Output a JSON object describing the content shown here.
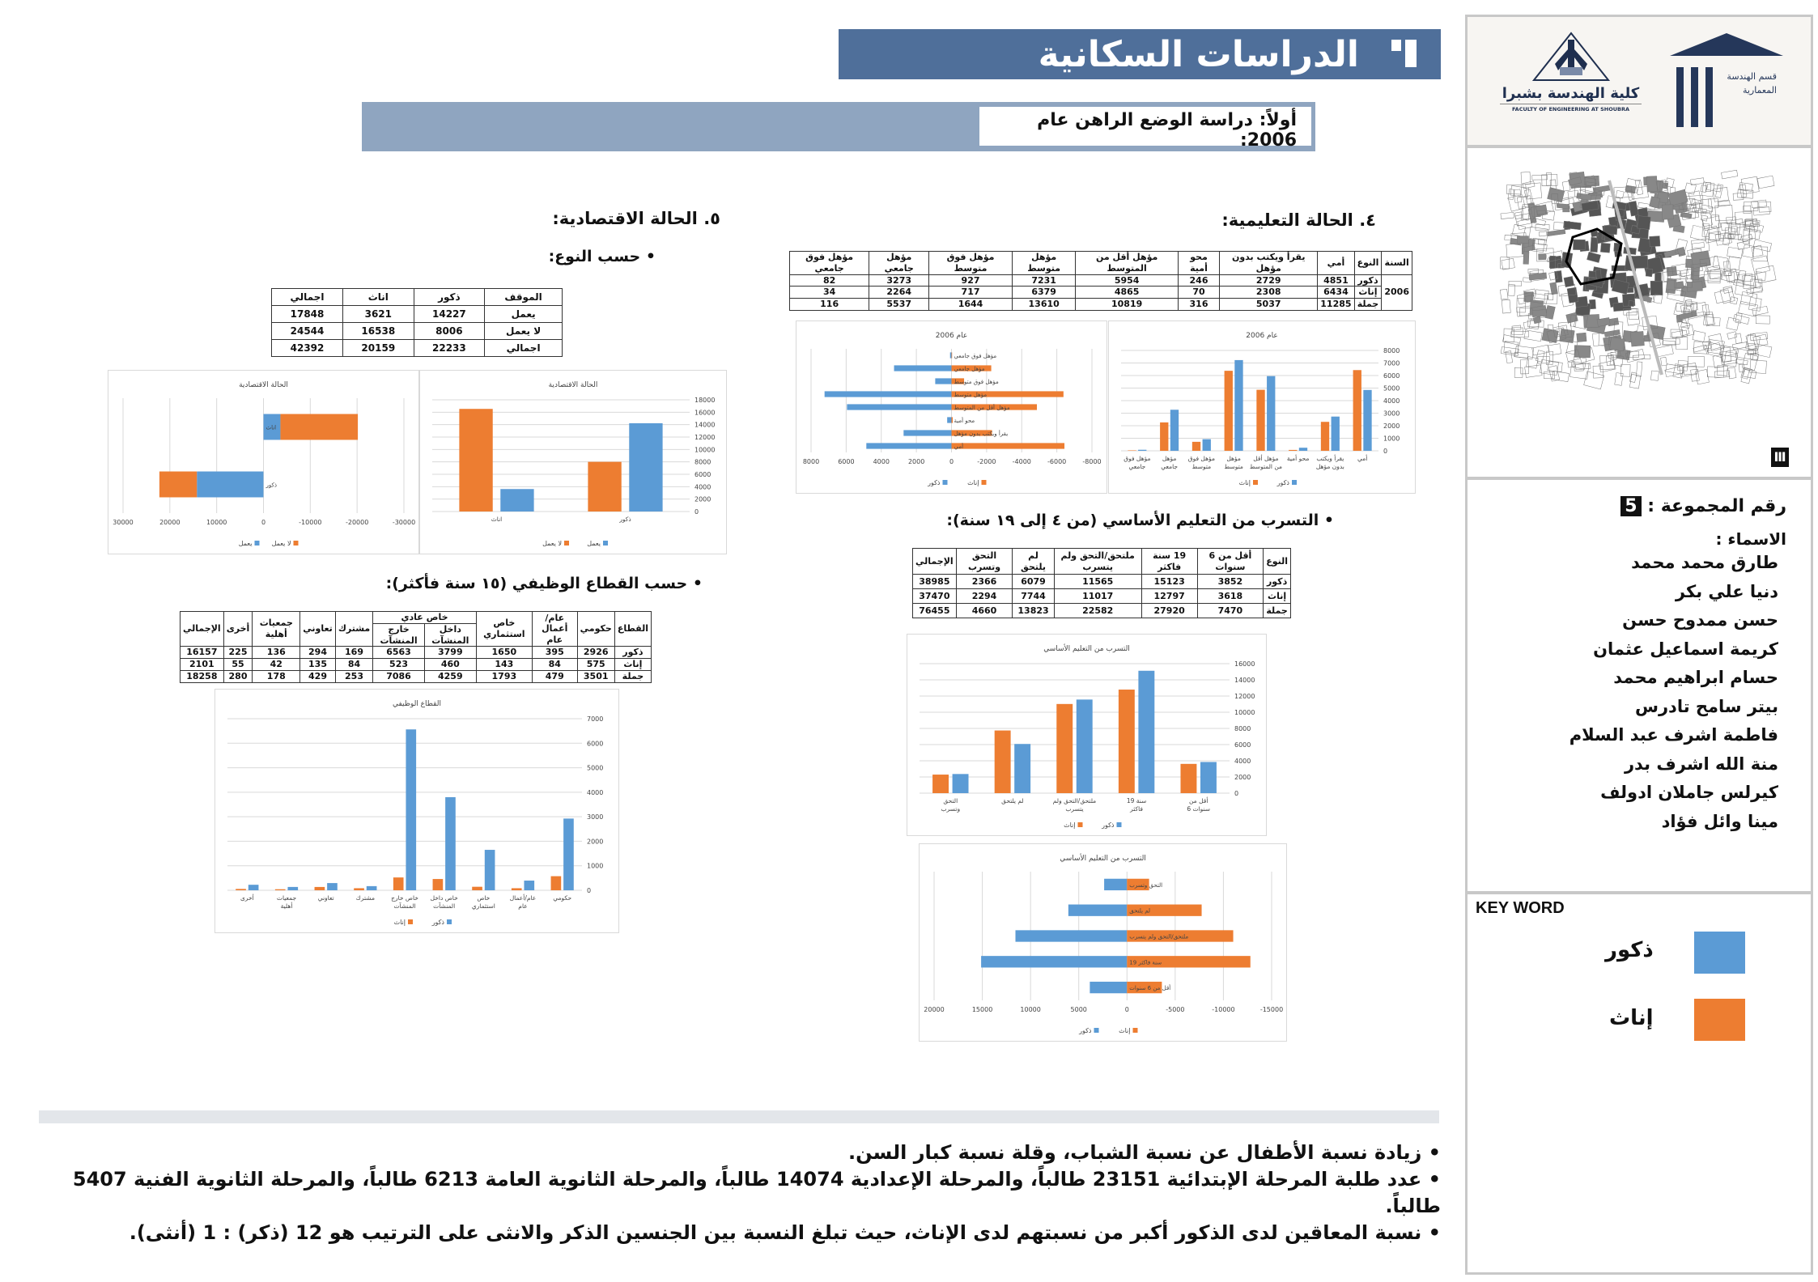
{
  "header": {
    "title": "الدراسات السكانية",
    "subtitle": "أولاً: دراسة الوضع الراهن عام 2006:"
  },
  "education": {
    "heading": "٤. الحالة التعليمية:",
    "table": {
      "headers": [
        "السنة",
        "النوع",
        "أمي",
        "يقرأ ويكتب بدون مؤهل",
        "محو أمية",
        "مؤهل أقل من المتوسط",
        "مؤهل متوسط",
        "مؤهل فوق متوسط",
        "مؤهل جامعي",
        "مؤهل فوق جامعي"
      ],
      "year": "2006",
      "rows": [
        [
          "ذكور",
          "4851",
          "2729",
          "246",
          "5954",
          "7231",
          "927",
          "3273",
          "82"
        ],
        [
          "إناث",
          "6434",
          "2308",
          "70",
          "4865",
          "6379",
          "717",
          "2264",
          "34"
        ],
        [
          "جملة",
          "11285",
          "5037",
          "316",
          "10819",
          "13610",
          "1644",
          "5537",
          "116"
        ]
      ]
    },
    "dropout_heading": "التسرب من التعليم الأساسي (من ٤ إلى ١٩ سنة):",
    "dropout_table": {
      "headers": [
        "النوع",
        "أقل من 6 سنوات",
        "19 سنة فاكثر",
        "ملتحق/التحق ولم يتسرب",
        "لم يلتحق",
        "التحق وتسرب",
        "الإجمالي"
      ],
      "rows": [
        [
          "ذكور",
          "3852",
          "15123",
          "11565",
          "6079",
          "2366",
          "38985"
        ],
        [
          "إناث",
          "3618",
          "12797",
          "11017",
          "7744",
          "2294",
          "37470"
        ],
        [
          "جملة",
          "7470",
          "27920",
          "22582",
          "13823",
          "4660",
          "76455"
        ]
      ]
    }
  },
  "economy": {
    "heading": "٥. الحالة الاقتصادية:",
    "by_gender_heading": "حسب النوع:",
    "table": {
      "headers": [
        "الموقف",
        "ذكور",
        "اناث",
        "اجمالي"
      ],
      "rows": [
        [
          "يعمل",
          "14227",
          "3621",
          "17848"
        ],
        [
          "لا يعمل",
          "8006",
          "16538",
          "24544"
        ],
        [
          "اجمالي",
          "22233",
          "20159",
          "42392"
        ]
      ]
    },
    "sector_heading": "حسب القطاع الوظيفي (١٥ سنة فأكثر):",
    "sector_table": {
      "h_sector": "القطاع",
      "h_gov": "حكومي",
      "h_public": "عام/أعمال عام",
      "h_invest": "خاص استثماري",
      "h_private": "خاص عادي",
      "h_inside": "داخل المنشآت",
      "h_outside": "خارج المنشآت",
      "h_joint": "مشترك",
      "h_coop": "تعاوني",
      "h_ngo": "جمعيات أهلية",
      "h_other": "أخرى",
      "h_total": "الإجمالي",
      "rows": [
        [
          "ذكور",
          "2926",
          "395",
          "1650",
          "3799",
          "6563",
          "169",
          "294",
          "136",
          "225",
          "16157"
        ],
        [
          "إناث",
          "575",
          "84",
          "143",
          "460",
          "523",
          "84",
          "135",
          "42",
          "55",
          "2101"
        ],
        [
          "جملة",
          "3501",
          "479",
          "1793",
          "4259",
          "7086",
          "253",
          "429",
          "178",
          "280",
          "18258"
        ]
      ]
    }
  },
  "chart_data": [
    {
      "id": "econ-hbar",
      "type": "bar",
      "orientation": "horizontal",
      "layout": "stacked",
      "title": "الحالة الاقتصادية",
      "categories": [
        "اناث",
        "ذكور"
      ],
      "category_side": [
        "right",
        "left"
      ],
      "series": [
        {
          "name": "يعمل",
          "color": "#5b9bd5",
          "values": [
            3621,
            14227
          ]
        },
        {
          "name": "لا يعمل",
          "color": "#ed7d31",
          "values": [
            16538,
            8006
          ]
        }
      ],
      "xlim": [
        -30000,
        30000
      ],
      "xstep": 10000,
      "axis_reversed": true,
      "grid": true,
      "legend": "bottom"
    },
    {
      "id": "econ-vbar",
      "type": "bar",
      "orientation": "vertical",
      "title": "الحالة الاقتصادية",
      "categories": [
        "ذكور",
        "اناث"
      ],
      "series": [
        {
          "name": "لا يعمل",
          "color": "#ed7d31",
          "values": [
            8006,
            16538
          ]
        },
        {
          "name": "يعمل",
          "color": "#5b9bd5",
          "values": [
            14227,
            3621
          ]
        }
      ],
      "ylim": [
        0,
        18000
      ],
      "ystep": 2000,
      "grid": true,
      "legend": "bottom"
    },
    {
      "id": "edu-hbar",
      "type": "bar",
      "orientation": "horizontal",
      "layout": "butterfly",
      "title": "عام 2006",
      "categories": [
        "مؤهل فوق جامعي",
        "مؤهل جامعي",
        "مؤهل فوق متوسط",
        "مؤهل متوسط",
        "مؤهل أقل من المتوسط",
        "محو أمية",
        "يقرأ ويكتب بدون مؤهل",
        "أمي"
      ],
      "series": [
        {
          "name": "ذكور",
          "color": "#5b9bd5",
          "side": "left",
          "values": [
            82,
            3273,
            927,
            7231,
            5954,
            246,
            2729,
            4851
          ]
        },
        {
          "name": "إناث",
          "color": "#ed7d31",
          "side": "right",
          "values": [
            34,
            2264,
            717,
            6379,
            4865,
            70,
            2308,
            6434
          ]
        }
      ],
      "xlim": [
        -8000,
        8000
      ],
      "xstep": 2000,
      "axis_reversed": true,
      "grid": true,
      "legend": "bottom"
    },
    {
      "id": "edu-vbar",
      "type": "bar",
      "orientation": "vertical",
      "title": "عام 2006",
      "categories": [
        "أمي",
        "يقرأ ويكتب بدون مؤهل",
        "محو أمية",
        "مؤهل أقل من المتوسط",
        "مؤهل متوسط",
        "مؤهل فوق متوسط",
        "مؤهل جامعي",
        "مؤهل فوق جامعي"
      ],
      "series": [
        {
          "name": "إناث",
          "color": "#ed7d31",
          "values": [
            6434,
            2308,
            70,
            4865,
            6379,
            717,
            2264,
            34
          ]
        },
        {
          "name": "ذكور",
          "color": "#5b9bd5",
          "values": [
            4851,
            2729,
            246,
            5954,
            7231,
            927,
            3273,
            82
          ]
        }
      ],
      "ylim": [
        0,
        8000
      ],
      "ystep": 1000,
      "grid": true,
      "legend": "bottom"
    },
    {
      "id": "drop-vbar",
      "type": "bar",
      "orientation": "vertical",
      "title": "التسرب من التعليم الأساسي",
      "categories": [
        "أقل من 6 سنوات",
        "19 سنة فاكثر",
        "ملتحق/التحق ولم يتسرب",
        "لم يلتحق",
        "التحق وتسرب"
      ],
      "series": [
        {
          "name": "إناث",
          "color": "#ed7d31",
          "values": [
            3618,
            12797,
            11017,
            7744,
            2294
          ]
        },
        {
          "name": "ذكور",
          "color": "#5b9bd5",
          "values": [
            3852,
            15123,
            11565,
            6079,
            2366
          ]
        }
      ],
      "ylim": [
        0,
        16000
      ],
      "ystep": 2000,
      "grid": true,
      "legend": "bottom"
    },
    {
      "id": "drop-hbar",
      "type": "bar",
      "orientation": "horizontal",
      "layout": "butterfly",
      "title": "التسرب من التعليم الأساسي",
      "categories": [
        "التحق وتسرب",
        "لم يلتحق",
        "ملتحق/التحق ولم يتسرب",
        "19 سنة فاكثر",
        "أقل من 6 سنوات"
      ],
      "series": [
        {
          "name": "ذكور",
          "color": "#5b9bd5",
          "side": "left",
          "values": [
            2366,
            6079,
            11565,
            15123,
            3852
          ]
        },
        {
          "name": "إناث",
          "color": "#ed7d31",
          "side": "right",
          "values": [
            2294,
            7744,
            11017,
            12797,
            3618
          ]
        }
      ],
      "xlim": [
        -15000,
        20000
      ],
      "xstep": 5000,
      "axis_reversed": true,
      "grid": true,
      "legend": "bottom"
    },
    {
      "id": "sector-vbar",
      "type": "bar",
      "orientation": "vertical",
      "title": "القطاع الوظيفي",
      "categories": [
        "حكومي",
        "عام/أعمال عام",
        "خاص استثماري",
        "خاص داخل المنشآت",
        "خاص خارج المنشآت",
        "مشترك",
        "تعاوني",
        "جمعيات أهلية",
        "أخرى"
      ],
      "series": [
        {
          "name": "إناث",
          "color": "#ed7d31",
          "values": [
            575,
            84,
            143,
            460,
            523,
            84,
            135,
            42,
            55
          ]
        },
        {
          "name": "ذكور",
          "color": "#5b9bd5",
          "values": [
            2926,
            395,
            1650,
            3799,
            6563,
            169,
            294,
            136,
            225
          ]
        }
      ],
      "ylim": [
        0,
        7000
      ],
      "ystep": 1000,
      "grid": true,
      "legend": "bottom"
    }
  ],
  "sidebar": {
    "dept_logo_text": "قسم الهندسة المعمارية",
    "faculty_name": "كلية الهندسة بشبرا",
    "faculty_name_en": "FACULTY OF ENGINEERING AT SHOUBRA",
    "group_label": "رقم المجموعة :",
    "group_number": "5",
    "names_label": "الاسماء :",
    "names": [
      "طارق محمد محمد",
      "دنيا علي بكر",
      "حسن ممدوح حسن",
      "كريمة اسماعيل عثمان",
      "حسام ابراهيم محمد",
      "بيتر سامح تادرس",
      "فاطمة اشرف عبد السلام",
      "منة الله اشرف بدر",
      "كيرلس جاملان ادولف",
      "مينا وائل فؤاد"
    ],
    "keyword_title": "KEY WORD",
    "key_male": "ذكور",
    "key_female": "إناث",
    "key_male_color": "#5b9bd5",
    "key_female_color": "#ed7d31"
  },
  "conclusions": [
    "زيادة نسبة الأطفال عن نسبة الشباب، وقلة نسبة كبار السن.",
    "عدد طلبة المرحلة الإبتدائية 23151 طالباً، والمرحلة الإعدادية 14074 طالباً، والمرحلة الثانوية العامة 6213 طالباً، والمرحلة الثانوية الفنية 5407 طالباً.",
    "نسبة المعاقين لدى الذكور أكبر من نسبتهم لدى الإناث، حيث تبلغ النسبة بين الجنسين الذكر والانثى على الترتيب هو 12 (ذكر) : 1 (أنثى)."
  ]
}
